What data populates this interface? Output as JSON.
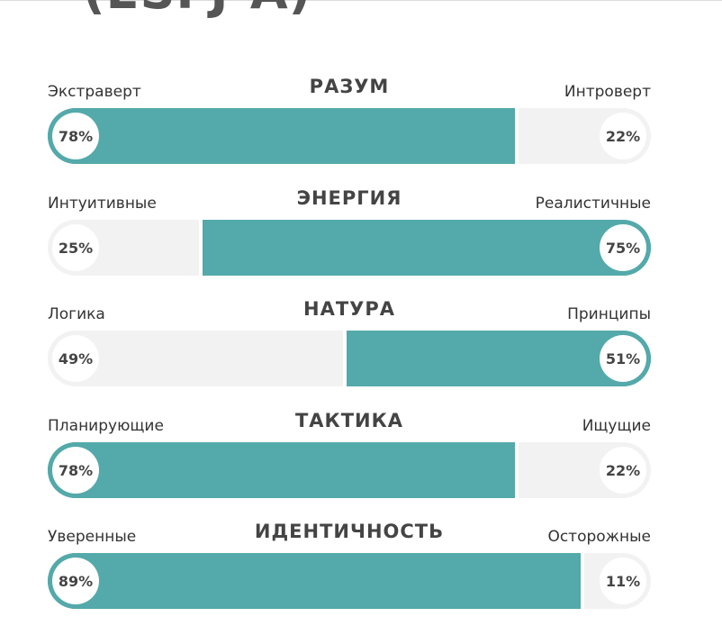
{
  "header": {
    "title": "(ESFJ-A)"
  },
  "traits": [
    {
      "title": "РАЗУМ",
      "left_label": "Экстраверт",
      "right_label": "Интроверт",
      "left_pct": "78%",
      "right_pct": "22%",
      "dominant": "left",
      "fill_percent": 78
    },
    {
      "title": "ЭНЕРГИЯ",
      "left_label": "Интуитивные",
      "right_label": "Реалистичные",
      "left_pct": "25%",
      "right_pct": "75%",
      "dominant": "right",
      "fill_percent": 75
    },
    {
      "title": "НАТУРА",
      "left_label": "Логика",
      "right_label": "Принципы",
      "left_pct": "49%",
      "right_pct": "51%",
      "dominant": "right",
      "fill_percent": 51
    },
    {
      "title": "ТАКТИКА",
      "left_label": "Планирующие",
      "right_label": "Ищущие",
      "left_pct": "78%",
      "right_pct": "22%",
      "dominant": "left",
      "fill_percent": 78
    },
    {
      "title": "ИДЕНТИЧНОСТЬ",
      "left_label": "Уверенные",
      "right_label": "Осторожные",
      "left_pct": "89%",
      "right_pct": "11%",
      "dominant": "left",
      "fill_percent": 89
    }
  ],
  "colors": {
    "accent": "#54a9aa",
    "track": "#f2f2f2"
  }
}
